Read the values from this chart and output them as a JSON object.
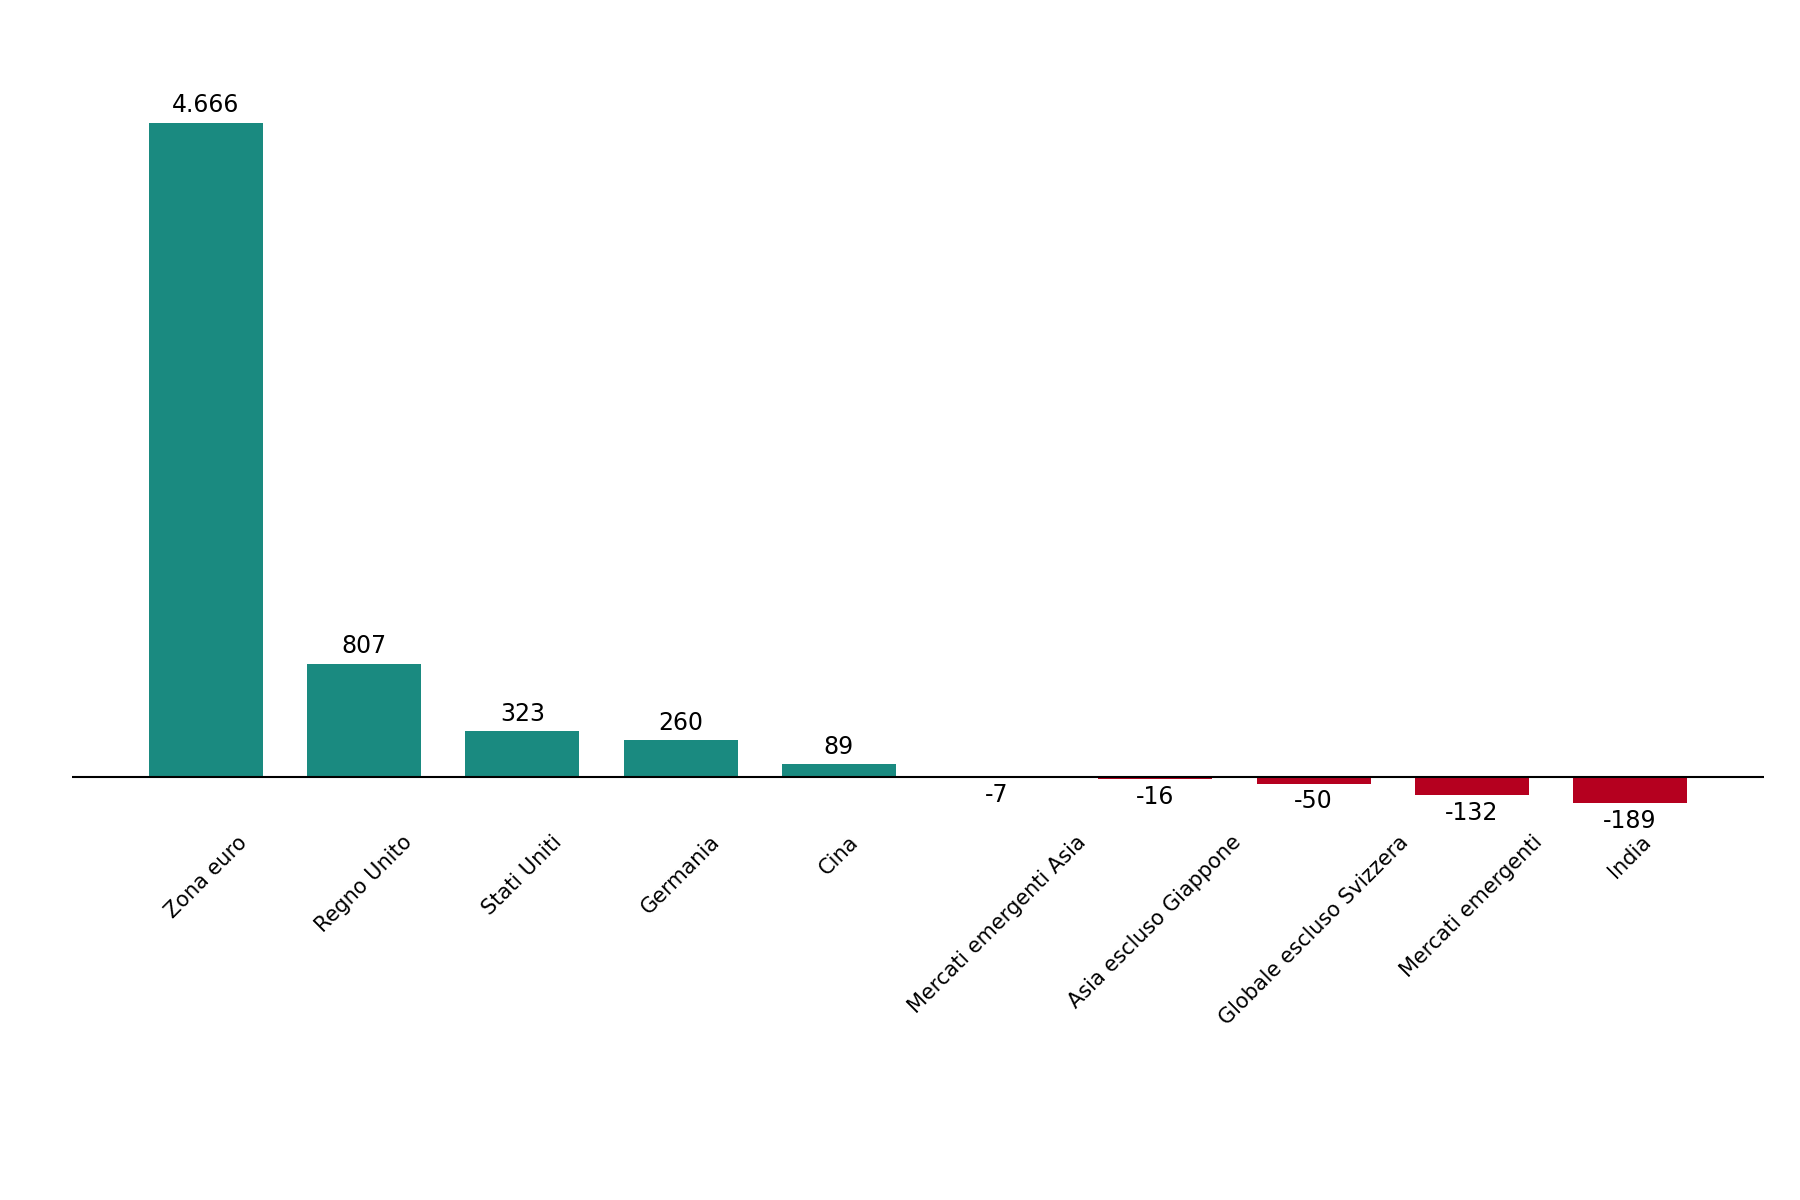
{
  "categories": [
    "Zona euro",
    "Regno Unito",
    "Stati Uniti",
    "Germania",
    "Cina",
    "Mercati emergenti Asia",
    "Asia escluso Giappone",
    "Globale escluso Svizzera",
    "Mercati emergenti",
    "India"
  ],
  "values": [
    4666,
    807,
    323,
    260,
    89,
    -7,
    -16,
    -50,
    -132,
    -189
  ],
  "labels": [
    "4.666",
    "807",
    "323",
    "260",
    "89",
    "-7",
    "-16",
    "-50",
    "-132",
    "-189"
  ],
  "positive_color": "#1a8a80",
  "negative_color": "#b5001f",
  "background_color": "#ffffff",
  "bar_width": 0.72,
  "ylim": [
    -280,
    5200
  ],
  "label_fontsize": 17,
  "tick_fontsize": 15,
  "fig_width": 18.0,
  "fig_height": 12.0,
  "dpi": 100
}
